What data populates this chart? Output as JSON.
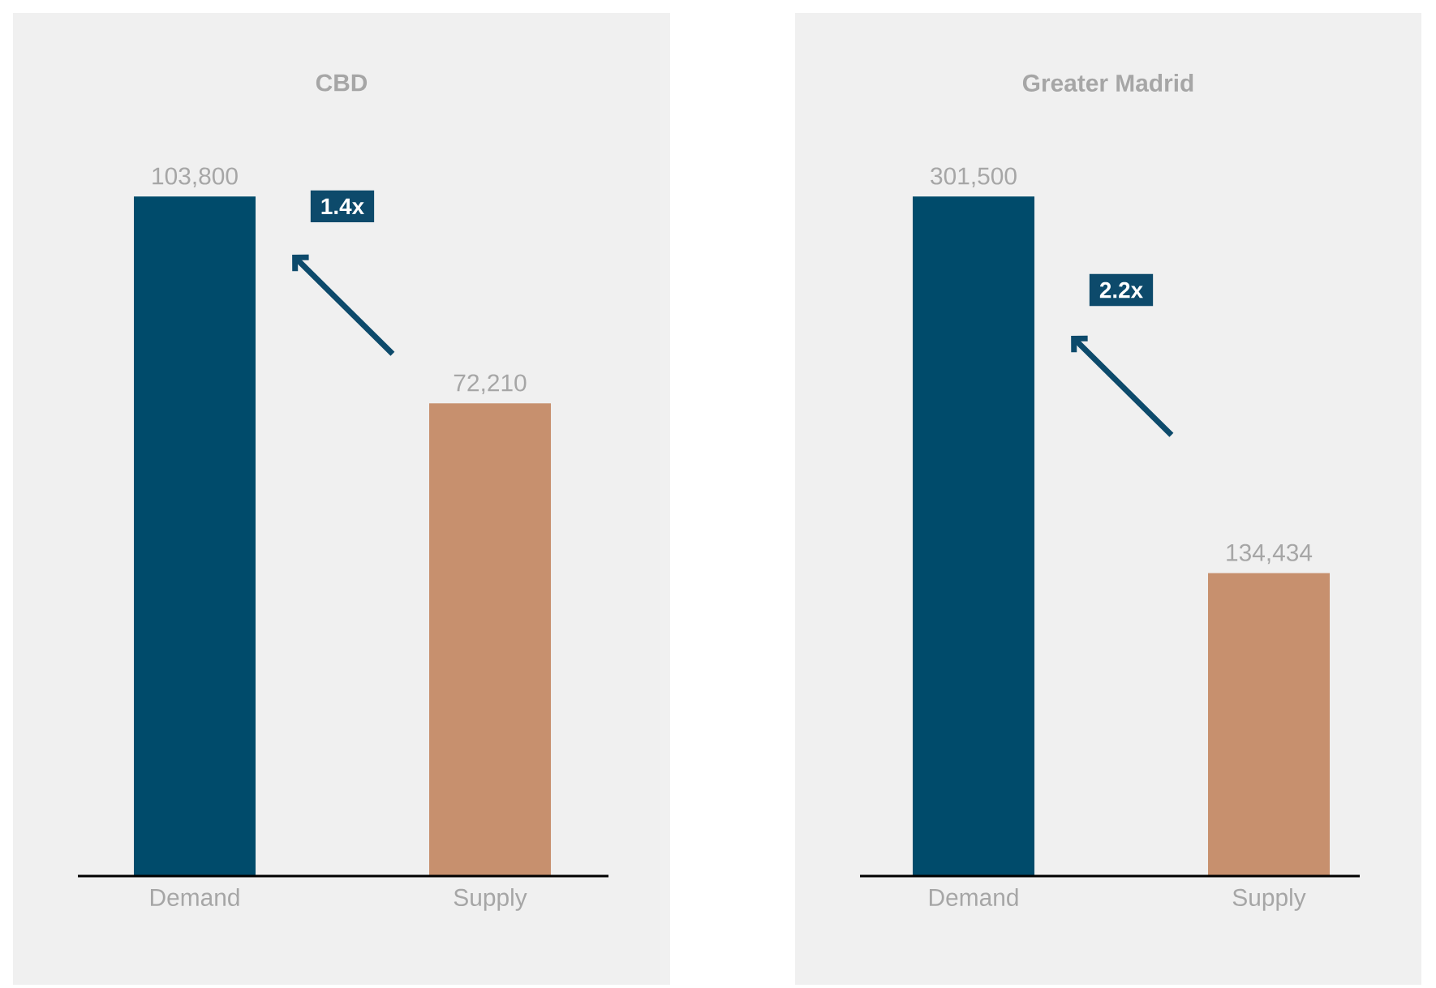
{
  "chart_data": [
    {
      "type": "bar",
      "title": "CBD",
      "categories": [
        "Demand",
        "Supply"
      ],
      "values": [
        103800,
        72210
      ],
      "colors": [
        "#004b6b",
        "#c7906e"
      ],
      "value_labels": [
        "103,800",
        "72,210"
      ],
      "annotations": [
        "1.4x"
      ]
    },
    {
      "type": "bar",
      "title": "Greater Madrid",
      "categories": [
        "Demand",
        "Supply"
      ],
      "values": [
        301500,
        134434
      ],
      "colors": [
        "#004b6b",
        "#c7906e"
      ],
      "value_labels": [
        "301,500",
        "134,434"
      ],
      "annotations": [
        "2.2x"
      ]
    }
  ]
}
